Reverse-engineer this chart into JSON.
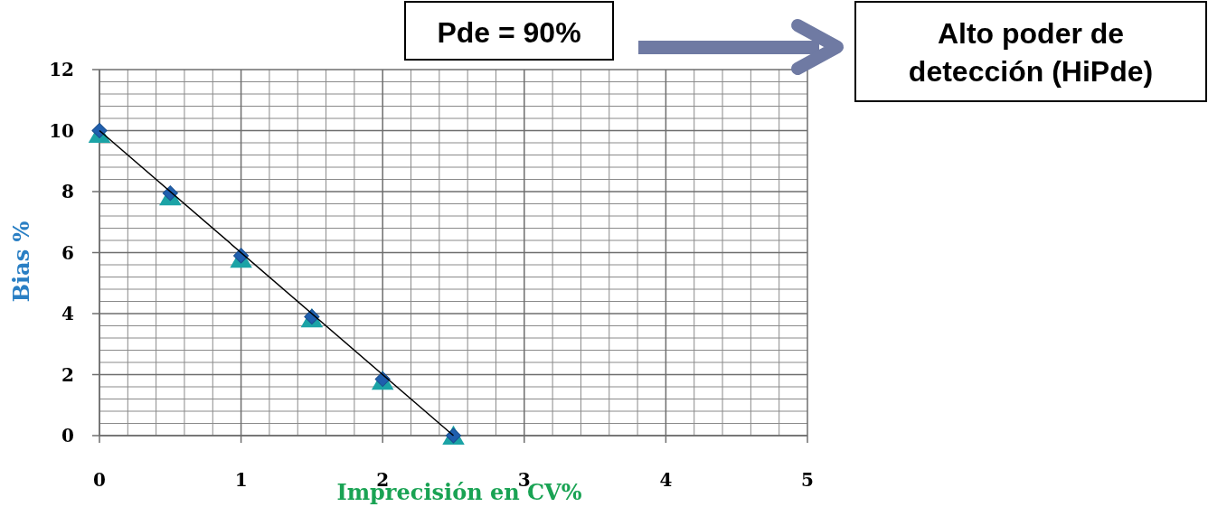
{
  "chart_data": {
    "type": "scatter",
    "xlabel": "Imprecisión en CV%",
    "ylabel": "Bias %",
    "x": [
      0,
      0.5,
      1,
      1.5,
      2,
      2.5
    ],
    "series": [
      {
        "color": "#1ba3a6",
        "marker": "triangle",
        "values": [
          9.9,
          7.85,
          5.8,
          3.85,
          1.8,
          0
        ]
      },
      {
        "color": "#1f5fae",
        "marker": "diamond",
        "values": [
          10,
          7.95,
          5.9,
          3.9,
          1.85,
          0
        ]
      },
      {
        "type": "line",
        "color": "#000000",
        "marker": "none",
        "x": [
          0,
          2.5
        ],
        "values": [
          10,
          0
        ]
      }
    ],
    "xlim": [
      0,
      5
    ],
    "xticks": [
      0,
      1,
      2,
      3,
      4,
      5
    ],
    "ylim": [
      0,
      12
    ],
    "yticks": [
      0,
      2,
      4,
      6,
      8,
      10,
      12
    ],
    "grid": true,
    "line_style": "solid",
    "annotations": [
      "Pde = 90%",
      "Alto poder de detección (HiPde)"
    ]
  }
}
